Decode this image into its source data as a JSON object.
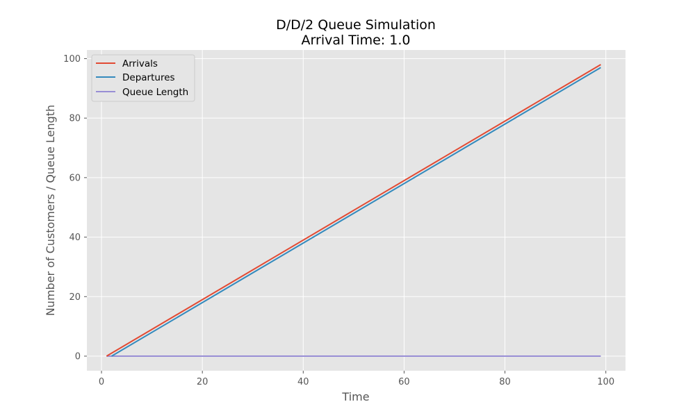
{
  "chart_data": {
    "type": "line",
    "title": "D/D/2 Queue Simulation",
    "subtitle": "Arrival Time: 1.0",
    "xlabel": "Time",
    "ylabel": "Number of Customers / Queue Length",
    "xlim": [
      -2.9,
      103.9
    ],
    "ylim": [
      -4.9,
      102.9
    ],
    "xticks": [
      "0",
      "20",
      "40",
      "60",
      "80",
      "100"
    ],
    "yticks": [
      "0",
      "20",
      "40",
      "60",
      "80",
      "100"
    ],
    "grid": true,
    "legend_position": "top-left",
    "background_color": "#e5e5e5",
    "series": [
      {
        "name": "Arrivals",
        "color": "#e24a33",
        "x": [
          1,
          99
        ],
        "y": [
          0,
          98
        ]
      },
      {
        "name": "Departures",
        "color": "#348abd",
        "x": [
          2,
          99
        ],
        "y": [
          0,
          97
        ]
      },
      {
        "name": "Queue Length",
        "color": "#988ed5",
        "x": [
          1,
          99
        ],
        "y": [
          0,
          0
        ]
      }
    ]
  }
}
